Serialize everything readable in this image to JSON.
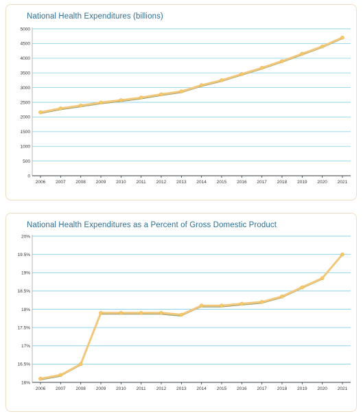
{
  "chart_data": [
    {
      "type": "line",
      "title": "National Health Expenditures (billions)",
      "xlabel": "",
      "ylabel": "",
      "categories": [
        "2006",
        "2007",
        "2008",
        "2009",
        "2010",
        "2011",
        "2012",
        "2013",
        "2014",
        "2015",
        "2016",
        "2017",
        "2018",
        "2019",
        "2020",
        "2021"
      ],
      "series": [
        {
          "values": [
            2160,
            2290,
            2390,
            2490,
            2570,
            2660,
            2770,
            2870,
            3080,
            3250,
            3460,
            3670,
            3900,
            4150,
            4400,
            4700
          ]
        }
      ],
      "ylim": [
        0,
        5000
      ],
      "yticks": [
        0,
        500,
        1000,
        1500,
        2000,
        2500,
        3000,
        3500,
        4000,
        4500,
        5000
      ],
      "ytick_labels": [
        "0",
        "500",
        "1000",
        "1500",
        "2000",
        "2500",
        "3000",
        "3500",
        "4000",
        "4500",
        "5000"
      ],
      "grid": true,
      "colors": {
        "line": "#f3c77a",
        "shadow": "#8e9e72",
        "marker": "#f5c96a",
        "grid": "#8fd3ea",
        "title": "#2e6f95"
      }
    },
    {
      "type": "line",
      "title": "National Health Expenditures as a Percent of Gross Domestic Product",
      "xlabel": "",
      "ylabel": "",
      "categories": [
        "2006",
        "2007",
        "2008",
        "2009",
        "2010",
        "2011",
        "2012",
        "2013",
        "2014",
        "2015",
        "2016",
        "2017",
        "2018",
        "2019",
        "2020",
        "2021"
      ],
      "series": [
        {
          "values": [
            16.1,
            16.2,
            16.5,
            17.9,
            17.9,
            17.9,
            17.9,
            17.85,
            18.1,
            18.1,
            18.15,
            18.2,
            18.35,
            18.6,
            18.85,
            19.5
          ]
        }
      ],
      "ylim": [
        16,
        20
      ],
      "yticks": [
        16,
        16.5,
        17,
        17.5,
        18,
        18.5,
        19,
        19.5,
        20
      ],
      "ytick_labels": [
        "16%",
        "16.5%",
        "17%",
        "17.5%",
        "18%",
        "18.5%",
        "19%",
        "19.5%",
        "20%"
      ],
      "grid": true,
      "colors": {
        "line": "#f3c77a",
        "shadow": "#8e9e72",
        "marker": "#f5c96a",
        "grid": "#8fd3ea",
        "title": "#2e6f95"
      }
    }
  ]
}
